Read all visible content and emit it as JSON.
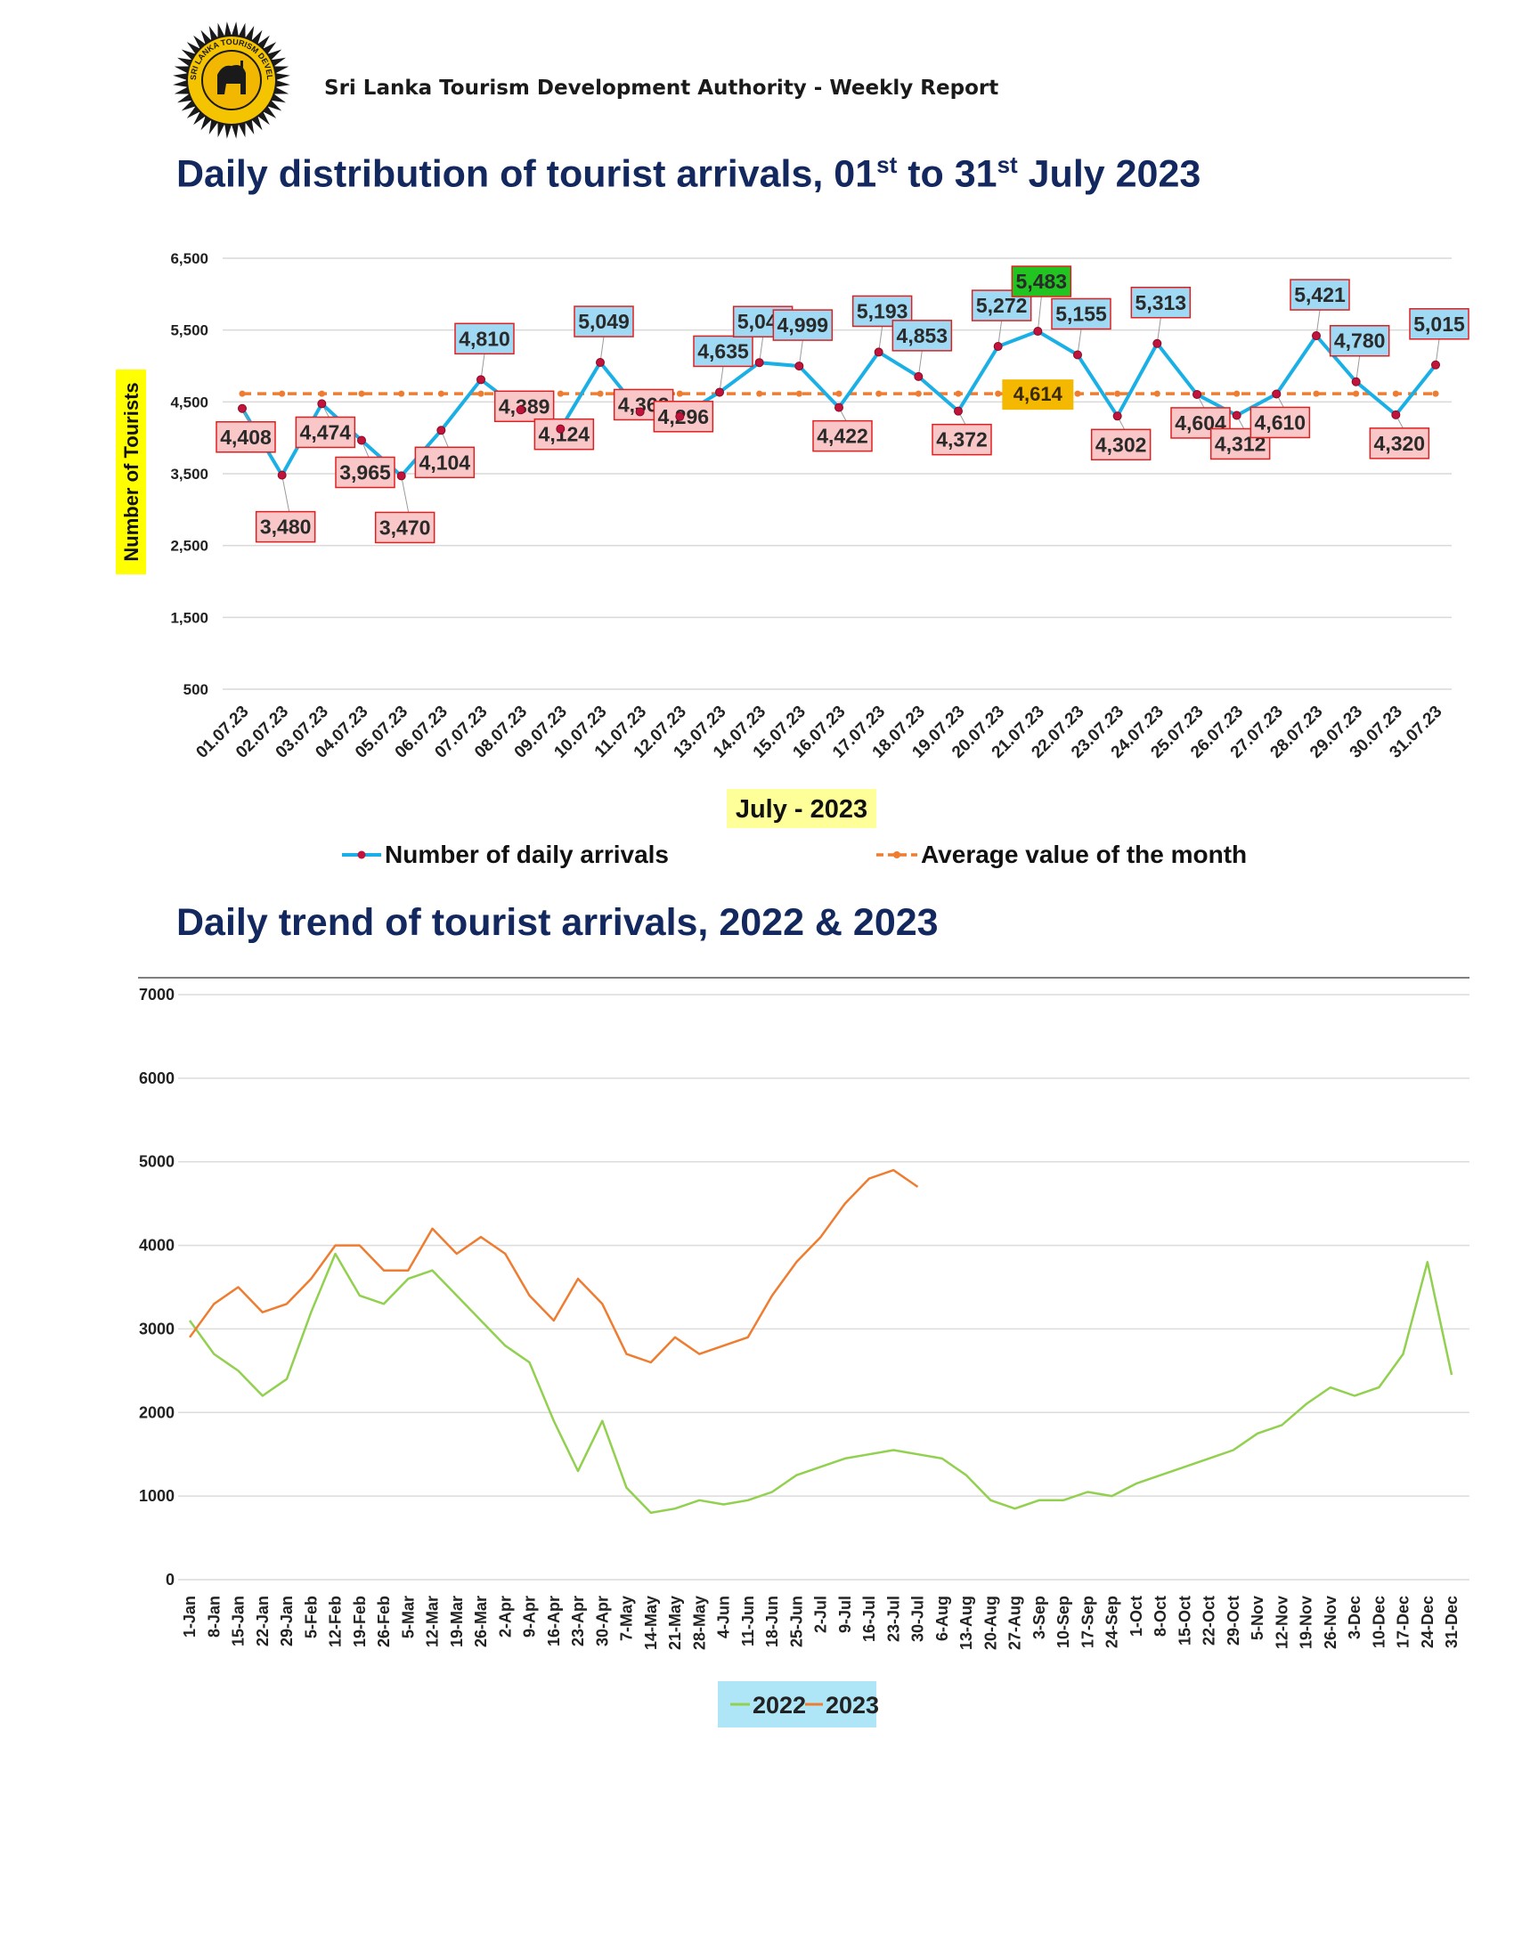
{
  "header": {
    "org_text": "Sri Lanka Tourism Development Authority - Weekly Report",
    "logo_text": "SRI LANKA TOURISM DEVELOPMENT AUTHORITY"
  },
  "colors": {
    "title": "#12285e",
    "daily_line": "#1ab0e6",
    "marker": "#c0143c",
    "average_line": "#ee7d31",
    "series_2022": "#92d050",
    "series_2023": "#ee7d31",
    "label_above_fill": "#9fd9f3",
    "label_below_fill": "#f9c7c7",
    "label_border": "#e02020",
    "max_label_fill": "#22c422",
    "avg_label_fill": "#f5b800",
    "axis_label_highlight": "#ffff00",
    "month_label_highlight": "#ffff99",
    "legend_highlight": "#aee6f7"
  },
  "chart1": {
    "title_main": "Daily distribution of tourist arrivals, 01",
    "title_sup1": "st",
    "title_mid": " to 31",
    "title_sup2": "st",
    "title_end": " July 2023",
    "ylabel": "Number of Tourists",
    "xlabel": "July - 2023",
    "legend_daily": "Number of daily arrivals",
    "legend_avg": "Average value of the month"
  },
  "chart2": {
    "title": "Daily trend of tourist arrivals, 2022 & 2023"
  },
  "chart_data": [
    {
      "type": "line",
      "title": "Daily distribution of tourist arrivals, 01st to 31st July 2023",
      "xlabel": "July - 2023",
      "ylabel": "Number of Tourists",
      "ylim": [
        500,
        6500
      ],
      "yticks": [
        500,
        1500,
        2500,
        3500,
        4500,
        5500,
        6500
      ],
      "ytick_labels": [
        "500",
        "1,500",
        "2,500",
        "3,500",
        "4,500",
        "5,500",
        "6,500"
      ],
      "categories": [
        "01.07.23",
        "02.07.23",
        "03.07.23",
        "04.07.23",
        "05.07.23",
        "06.07.23",
        "07.07.23",
        "08.07.23",
        "09.07.23",
        "10.07.23",
        "11.07.23",
        "12.07.23",
        "13.07.23",
        "14.07.23",
        "15.07.23",
        "16.07.23",
        "17.07.23",
        "18.07.23",
        "19.07.23",
        "20.07.23",
        "21.07.23",
        "22.07.23",
        "23.07.23",
        "24.07.23",
        "25.07.23",
        "26.07.23",
        "27.07.23",
        "28.07.23",
        "29.07.23",
        "30.07.23",
        "31.07.23"
      ],
      "series": [
        {
          "name": "Number of daily arrivals",
          "values": [
            4408,
            3480,
            4474,
            3965,
            3470,
            4104,
            4810,
            4389,
            4124,
            5049,
            4362,
            4296,
            4635,
            5047,
            4999,
            4422,
            5193,
            4853,
            4372,
            5272,
            5483,
            5155,
            4302,
            5313,
            4604,
            4312,
            4610,
            5421,
            4780,
            4320,
            5015
          ]
        },
        {
          "name": "Average value of the month",
          "values": [
            4614,
            4614,
            4614,
            4614,
            4614,
            4614,
            4614,
            4614,
            4614,
            4614,
            4614,
            4614,
            4614,
            4614,
            4614,
            4614,
            4614,
            4614,
            4614,
            4614,
            4614,
            4614,
            4614,
            4614,
            4614,
            4614,
            4614,
            4614,
            4614,
            4614,
            4614
          ]
        }
      ],
      "data_labels": [
        "4,408",
        "3,480",
        "4,474",
        "3,965",
        "3,470",
        "4,104",
        "4,810",
        "4,389",
        "4,124",
        "5,049",
        "4,362",
        "4,296",
        "4,635",
        "5,047",
        "4,999",
        "4,422",
        "5,193",
        "4,853",
        "4,372",
        "5,272",
        "5,483",
        "5,155",
        "4,302",
        "5,313",
        "4,604",
        "4,312",
        "4,610",
        "5,421",
        "4,780",
        "4,320",
        "5,015"
      ],
      "average_label": "4,614",
      "legend": "bottom"
    },
    {
      "type": "line",
      "title": "Daily trend of tourist arrivals, 2022 & 2023",
      "ylim": [
        0,
        7000
      ],
      "yticks": [
        0,
        1000,
        2000,
        3000,
        4000,
        5000,
        6000,
        7000
      ],
      "x_tick_labels": [
        "1-Jan",
        "8-Jan",
        "15-Jan",
        "22-Jan",
        "29-Jan",
        "5-Feb",
        "12-Feb",
        "19-Feb",
        "26-Feb",
        "5-Mar",
        "12-Mar",
        "19-Mar",
        "26-Mar",
        "2-Apr",
        "9-Apr",
        "16-Apr",
        "23-Apr",
        "30-Apr",
        "7-May",
        "14-May",
        "21-May",
        "28-May",
        "4-Jun",
        "11-Jun",
        "18-Jun",
        "25-Jun",
        "2-Jul",
        "9-Jul",
        "16-Jul",
        "23-Jul",
        "30-Jul",
        "6-Aug",
        "13-Aug",
        "20-Aug",
        "27-Aug",
        "3-Sep",
        "10-Sep",
        "17-Sep",
        "24-Sep",
        "1-Oct",
        "8-Oct",
        "15-Oct",
        "22-Oct",
        "29-Oct",
        "5-Nov",
        "12-Nov",
        "19-Nov",
        "26-Nov",
        "3-Dec",
        "10-Dec",
        "17-Dec",
        "24-Dec",
        "31-Dec"
      ],
      "series": [
        {
          "name": "2022",
          "day_of_year": [
            1,
            8,
            15,
            22,
            29,
            36,
            43,
            50,
            57,
            64,
            71,
            78,
            85,
            92,
            99,
            106,
            113,
            120,
            127,
            134,
            141,
            148,
            155,
            162,
            169,
            176,
            183,
            190,
            197,
            204,
            211,
            218,
            225,
            232,
            239,
            246,
            253,
            260,
            267,
            274,
            281,
            288,
            295,
            302,
            309,
            316,
            323,
            330,
            337,
            344,
            351,
            358,
            365
          ],
          "values": [
            3100,
            2700,
            2500,
            2200,
            2400,
            3200,
            3900,
            3400,
            3300,
            3600,
            3700,
            3400,
            3100,
            2800,
            2600,
            1900,
            1300,
            1900,
            1100,
            800,
            850,
            950,
            900,
            950,
            1050,
            1250,
            1350,
            1450,
            1500,
            1550,
            1500,
            1450,
            1250,
            950,
            850,
            950,
            950,
            1050,
            1000,
            1150,
            1250,
            1350,
            1450,
            1550,
            1750,
            1850,
            2100,
            2300,
            2200,
            2300,
            2700,
            3800,
            2450
          ]
        },
        {
          "name": "2023",
          "day_of_year": [
            1,
            8,
            15,
            22,
            29,
            36,
            43,
            50,
            57,
            64,
            71,
            78,
            85,
            92,
            99,
            106,
            113,
            120,
            127,
            134,
            141,
            148,
            155,
            162,
            169,
            176,
            183,
            190,
            197,
            204,
            211
          ],
          "values": [
            2900,
            3300,
            3500,
            3200,
            3300,
            3600,
            4000,
            4000,
            3700,
            3700,
            4200,
            3900,
            4100,
            3900,
            3400,
            3100,
            3600,
            3300,
            2700,
            2600,
            2900,
            2700,
            2800,
            2900,
            3400,
            3800,
            4100,
            4500,
            4800,
            4900,
            4700
          ]
        }
      ],
      "legend": "bottom"
    }
  ]
}
